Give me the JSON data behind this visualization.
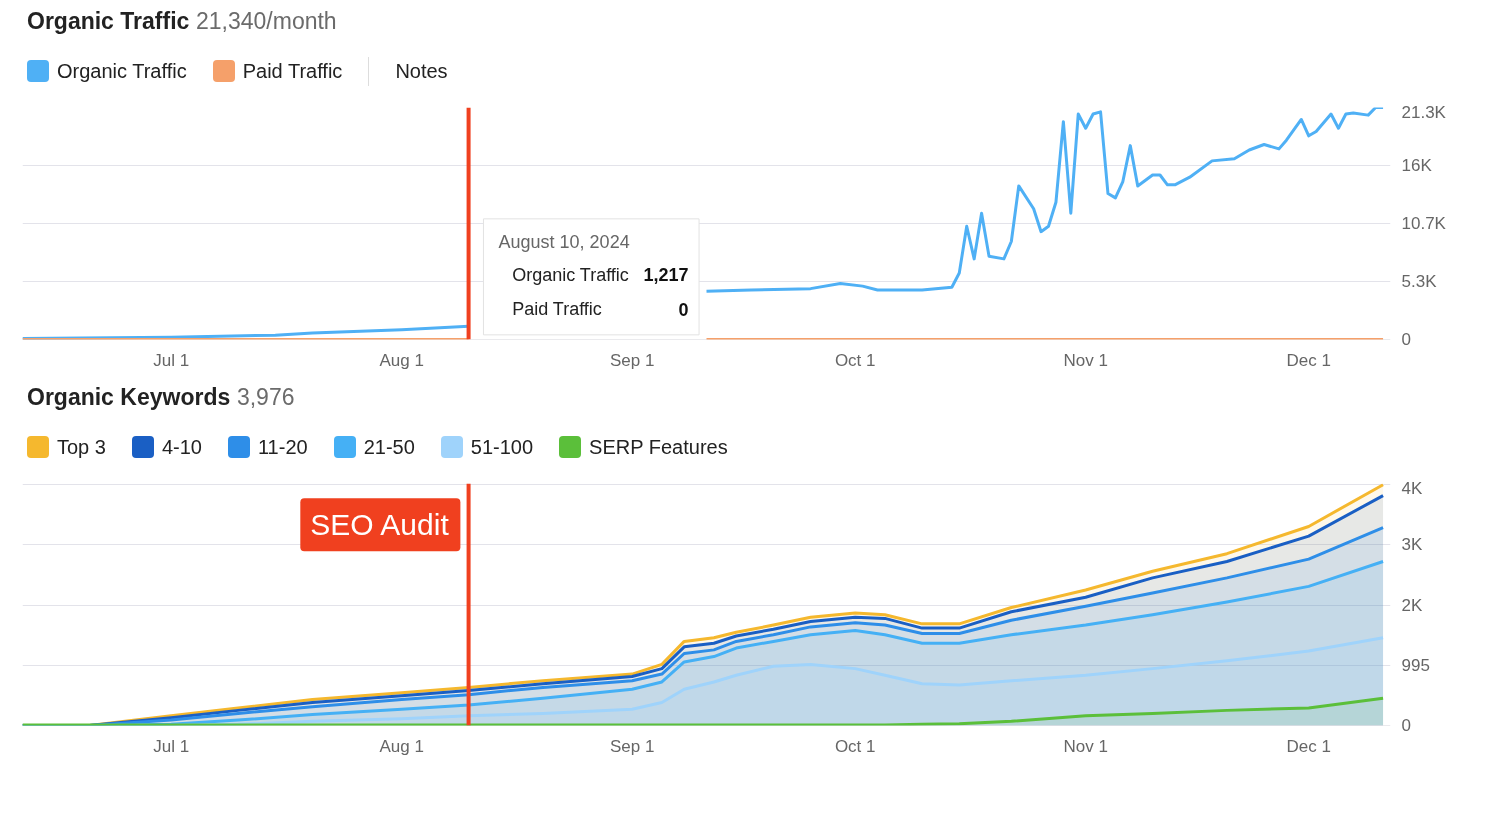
{
  "chart_data": [
    {
      "type": "line",
      "title": "Organic Traffic",
      "subtitle": "21,340/month",
      "legend": "top",
      "grid": "y",
      "marker": "none",
      "line_style": "solid",
      "xlim": [
        "2024-06-11",
        "2024-12-12"
      ],
      "xticks": [
        {
          "value": "2024-07-01",
          "label": "Jul 1"
        },
        {
          "value": "2024-08-01",
          "label": "Aug 1"
        },
        {
          "value": "2024-09-01",
          "label": "Sep 1"
        },
        {
          "value": "2024-10-01",
          "label": "Oct 1"
        },
        {
          "value": "2024-11-01",
          "label": "Nov 1"
        },
        {
          "value": "2024-12-01",
          "label": "Dec 1"
        }
      ],
      "ylim": [
        0,
        21300
      ],
      "yticks": [
        0,
        {
          "value": 5325,
          "label": "5.3K"
        },
        {
          "value": 10650,
          "label": "10.7K"
        },
        {
          "value": 15975,
          "label": "16K"
        },
        {
          "value": 21300,
          "label": "21.3K"
        }
      ],
      "series": [
        {
          "name": "Organic Traffic",
          "color": "#4fb0f5",
          "x": [
            "2024-06-11",
            "2024-07-01",
            "2024-07-15",
            "2024-07-20",
            "2024-08-01",
            "2024-08-10",
            "2024-08-11",
            "2024-09-11",
            "2024-09-17",
            "2024-09-25",
            "2024-09-29",
            "2024-10-02",
            "2024-10-04",
            "2024-10-10",
            "2024-10-14",
            "2024-10-15",
            "2024-10-16",
            "2024-10-17",
            "2024-10-18",
            "2024-10-19",
            "2024-10-21",
            "2024-10-22",
            "2024-10-23",
            "2024-10-25",
            "2024-10-26",
            "2024-10-27",
            "2024-10-28",
            "2024-10-29",
            "2024-10-30",
            "2024-10-31",
            "2024-11-01",
            "2024-11-02",
            "2024-11-03",
            "2024-11-04",
            "2024-11-05",
            "2024-11-06",
            "2024-11-07",
            "2024-11-08",
            "2024-11-10",
            "2024-11-11",
            "2024-11-12",
            "2024-11-13",
            "2024-11-15",
            "2024-11-18",
            "2024-11-21",
            "2024-11-23",
            "2024-11-25",
            "2024-11-27",
            "2024-11-28",
            "2024-11-30",
            "2024-12-01",
            "2024-12-02",
            "2024-12-04",
            "2024-12-05",
            "2024-12-06",
            "2024-12-07",
            "2024-12-09",
            "2024-12-10",
            "2024-12-11"
          ],
          "values": [
            100,
            200,
            400,
            600,
            900,
            1217,
            null,
            4430,
            4550,
            4670,
            5150,
            4900,
            4550,
            4550,
            4800,
            6100,
            10400,
            7400,
            11600,
            7650,
            7400,
            9000,
            14100,
            12000,
            9900,
            10400,
            12600,
            20000,
            11600,
            20700,
            19400,
            20700,
            20900,
            13400,
            13000,
            14500,
            17800,
            14100,
            15100,
            15100,
            14200,
            14200,
            14900,
            16400,
            16600,
            17400,
            17900,
            17500,
            18300,
            20200,
            18700,
            19100,
            20700,
            19400,
            20700,
            20800,
            20600,
            21300,
            21300
          ]
        },
        {
          "name": "Paid Traffic",
          "color": "#f5a06a",
          "x": [
            "2024-06-11",
            "2024-08-10",
            "2024-08-11",
            "2024-09-11",
            "2024-12-11"
          ],
          "values": [
            0,
            0,
            null,
            0,
            0
          ]
        }
      ],
      "ref_lines": [
        {
          "axis": "x",
          "value": "2024-08-10",
          "label": null,
          "color": "#f0401f"
        }
      ],
      "annotations": [
        "Notes",
        "August 10, 2024",
        "Organic Traffic",
        "1,217",
        "Paid Traffic",
        "0"
      ]
    },
    {
      "type": "area",
      "title": "Organic Keywords",
      "subtitle": "3,976",
      "legend": "top",
      "grid": "y",
      "marker": "none",
      "line_style": "solid",
      "x": [
        "2024-06-11",
        "2024-06-20",
        "2024-07-01",
        "2024-07-10",
        "2024-07-20",
        "2024-08-01",
        "2024-08-10",
        "2024-08-20",
        "2024-09-01",
        "2024-09-05",
        "2024-09-08",
        "2024-09-12",
        "2024-09-15",
        "2024-09-20",
        "2024-09-25",
        "2024-10-01",
        "2024-10-05",
        "2024-10-10",
        "2024-10-15",
        "2024-10-22",
        "2024-11-01",
        "2024-11-10",
        "2024-11-20",
        "2024-12-01",
        "2024-12-11"
      ],
      "xlim": [
        "2024-06-11",
        "2024-12-12"
      ],
      "xticks": [
        {
          "value": "2024-07-01",
          "label": "Jul 1"
        },
        {
          "value": "2024-08-01",
          "label": "Aug 1"
        },
        {
          "value": "2024-09-01",
          "label": "Sep 1"
        },
        {
          "value": "2024-10-01",
          "label": "Oct 1"
        },
        {
          "value": "2024-11-01",
          "label": "Nov 1"
        },
        {
          "value": "2024-12-01",
          "label": "Dec 1"
        }
      ],
      "ylim": [
        0,
        4000
      ],
      "yticks": [
        0,
        995,
        {
          "value": 1990,
          "label": "2K"
        },
        {
          "value": 2985,
          "label": "3K"
        },
        {
          "value": 3980,
          "label": "4K"
        }
      ],
      "series": [
        {
          "name": "Top 3",
          "color": "#f5b82e",
          "values": [
            0,
            0,
            160,
            290,
            430,
            540,
            630,
            740,
            850,
            1010,
            1390,
            1450,
            1540,
            1660,
            1790,
            1860,
            1830,
            1680,
            1680,
            1950,
            2240,
            2550,
            2840,
            3290,
            3980
          ]
        },
        {
          "name": "4-10",
          "color": "#1a5fc4",
          "values": [
            0,
            0,
            130,
            250,
            380,
            490,
            580,
            690,
            810,
            940,
            1300,
            1360,
            1480,
            1590,
            1720,
            1790,
            1770,
            1610,
            1610,
            1880,
            2120,
            2440,
            2710,
            3130,
            3800
          ]
        },
        {
          "name": "11-20",
          "color": "#2e8ee8",
          "values": [
            0,
            0,
            90,
            200,
            310,
            430,
            510,
            630,
            740,
            850,
            1190,
            1250,
            1390,
            1500,
            1630,
            1700,
            1660,
            1520,
            1520,
            1740,
            1970,
            2190,
            2440,
            2750,
            3270
          ]
        },
        {
          "name": "21-50",
          "color": "#45b0f5",
          "values": [
            0,
            0,
            20,
            90,
            180,
            270,
            340,
            450,
            600,
            720,
            1050,
            1140,
            1280,
            1390,
            1500,
            1570,
            1500,
            1360,
            1360,
            1500,
            1660,
            1830,
            2040,
            2300,
            2710
          ]
        },
        {
          "name": "51-100",
          "color": "#9fd3fb",
          "values": [
            0,
            0,
            0,
            20,
            70,
            110,
            160,
            200,
            270,
            380,
            600,
            720,
            830,
            980,
            1010,
            940,
            830,
            690,
            670,
            740,
            830,
            940,
            1070,
            1230,
            1450
          ]
        },
        {
          "name": "SERP Features",
          "color": "#5bbf3a",
          "values": [
            10,
            10,
            10,
            10,
            10,
            10,
            10,
            10,
            10,
            10,
            10,
            10,
            10,
            10,
            10,
            10,
            10,
            20,
            30,
            70,
            160,
            200,
            250,
            290,
            450
          ]
        }
      ],
      "ref_lines": [
        {
          "axis": "x",
          "value": "2024-08-10",
          "label": "SEO Audit",
          "color": "#f0401f"
        }
      ]
    }
  ]
}
